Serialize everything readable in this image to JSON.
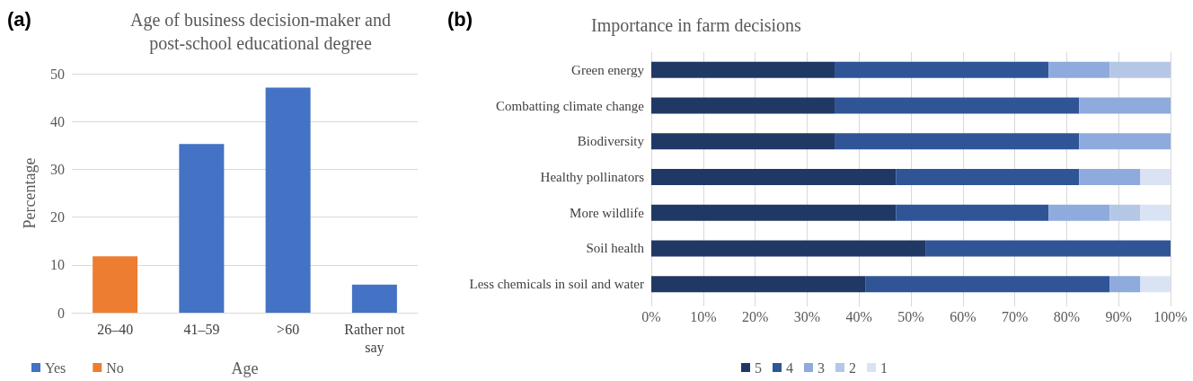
{
  "chart_data": [
    {
      "type": "bar",
      "title": "Age of business decision-maker and\npost-school educational degree",
      "xlabel": "Age",
      "ylabel": "Percentage",
      "annotations": [
        "(a)"
      ],
      "categories": [
        "26–40",
        "41–59",
        ">60",
        "Rather not\nsay"
      ],
      "series": [
        {
          "name": "Yes",
          "color": "#4472c4",
          "values": [
            null,
            35.3,
            47.1,
            5.9
          ]
        },
        {
          "name": "No",
          "color": "#ed7d31",
          "values": [
            11.8,
            null,
            null,
            null
          ]
        }
      ],
      "ylim": [
        0,
        50
      ],
      "yticks": [
        0,
        10,
        20,
        30,
        40,
        50
      ],
      "grid": "y",
      "legend": "bottom left"
    },
    {
      "type": "bar",
      "orientation": "horizontal",
      "stacked": true,
      "title": "Importance in farm decisions",
      "annotations": [
        "(b)"
      ],
      "categories": [
        "Green energy",
        "Combatting climate change",
        "Biodiversity",
        "Healthy pollinators",
        "More wildlife",
        "Soil health",
        "Less chemicals in soil and water"
      ],
      "series": [
        {
          "name": "5",
          "color": "#203864",
          "values": [
            35.3,
            35.3,
            35.3,
            47.1,
            47.1,
            52.9,
            41.2
          ]
        },
        {
          "name": "4",
          "color": "#2f5597",
          "values": [
            41.2,
            47.1,
            47.1,
            35.3,
            29.4,
            47.1,
            47.1
          ]
        },
        {
          "name": "3",
          "color": "#8faadc",
          "values": [
            11.8,
            17.6,
            17.6,
            11.8,
            11.8,
            0,
            5.9
          ]
        },
        {
          "name": "2",
          "color": "#b4c7e7",
          "values": [
            11.8,
            0,
            0,
            0,
            5.9,
            0,
            0
          ]
        },
        {
          "name": "1",
          "color": "#dae3f3",
          "values": [
            0,
            0,
            0,
            5.9,
            5.9,
            0,
            5.9
          ]
        }
      ],
      "xlim": [
        0,
        100
      ],
      "xticks": [
        {
          "value": 0,
          "label": "0%"
        },
        {
          "value": 10,
          "label": "10%"
        },
        {
          "value": 20,
          "label": "20%"
        },
        {
          "value": 30,
          "label": "30%"
        },
        {
          "value": 40,
          "label": "40%"
        },
        {
          "value": 50,
          "label": "50%"
        },
        {
          "value": 60,
          "label": "60%"
        },
        {
          "value": 70,
          "label": "70%"
        },
        {
          "value": 80,
          "label": "80%"
        },
        {
          "value": 90,
          "label": "90%"
        },
        {
          "value": 100,
          "label": "100%"
        }
      ],
      "grid": "x",
      "legend": "bottom"
    }
  ]
}
